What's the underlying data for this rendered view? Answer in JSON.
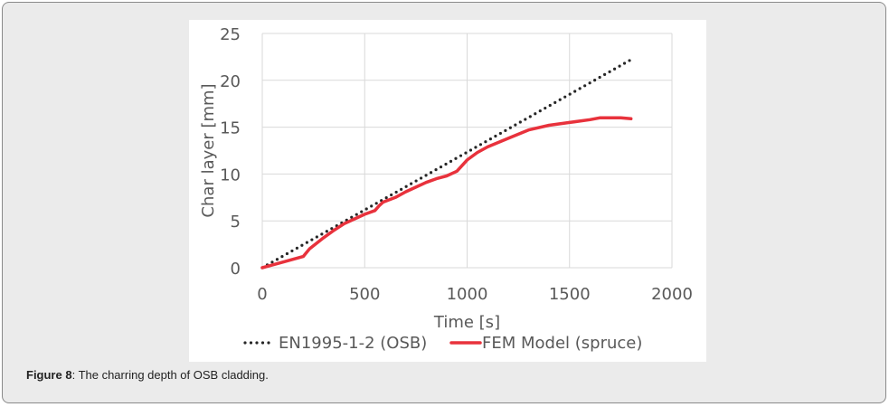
{
  "figure": {
    "label": "Figure 8",
    "caption": ":  The charring depth of OSB cladding."
  },
  "colors": {
    "frame_background": "#ebebeb",
    "grid": "#d9d9d9",
    "axis_text": "#595959"
  },
  "chart_data": {
    "type": "line",
    "title": "",
    "xlabel": "Time [s]",
    "ylabel": "Char layer [mm]",
    "xlim": [
      0,
      2000
    ],
    "ylim": [
      0,
      25
    ],
    "xticks": [
      0,
      500,
      1000,
      1500,
      2000
    ],
    "yticks": [
      0,
      5,
      10,
      15,
      20,
      25
    ],
    "xtick_labels": [
      "0",
      "500",
      "1000",
      "1500",
      "2000"
    ],
    "ytick_labels": [
      "0",
      "5",
      "10",
      "15",
      "20",
      "25"
    ],
    "grid": true,
    "legend_position": "bottom",
    "series": [
      {
        "name": "EN1995-1-2 (OSB)",
        "style": "dotted",
        "color": "#262626",
        "x": [
          0,
          1800
        ],
        "y": [
          0,
          22.2
        ]
      },
      {
        "name": "FEM Model (spruce)",
        "style": "solid",
        "color": "#e8323c",
        "x": [
          0,
          50,
          100,
          150,
          200,
          230,
          300,
          350,
          400,
          450,
          500,
          550,
          570,
          590,
          650,
          700,
          750,
          800,
          850,
          900,
          950,
          1000,
          1050,
          1100,
          1200,
          1300,
          1400,
          1500,
          1600,
          1650,
          1700,
          1750,
          1800
        ],
        "y": [
          0,
          0.3,
          0.6,
          0.9,
          1.2,
          2.0,
          3.2,
          4.0,
          4.7,
          5.2,
          5.7,
          6.1,
          6.6,
          7.0,
          7.5,
          8.1,
          8.6,
          9.1,
          9.5,
          9.8,
          10.3,
          11.5,
          12.3,
          12.9,
          13.8,
          14.7,
          15.2,
          15.5,
          15.8,
          16.0,
          16.0,
          16.0,
          15.9
        ]
      }
    ]
  }
}
